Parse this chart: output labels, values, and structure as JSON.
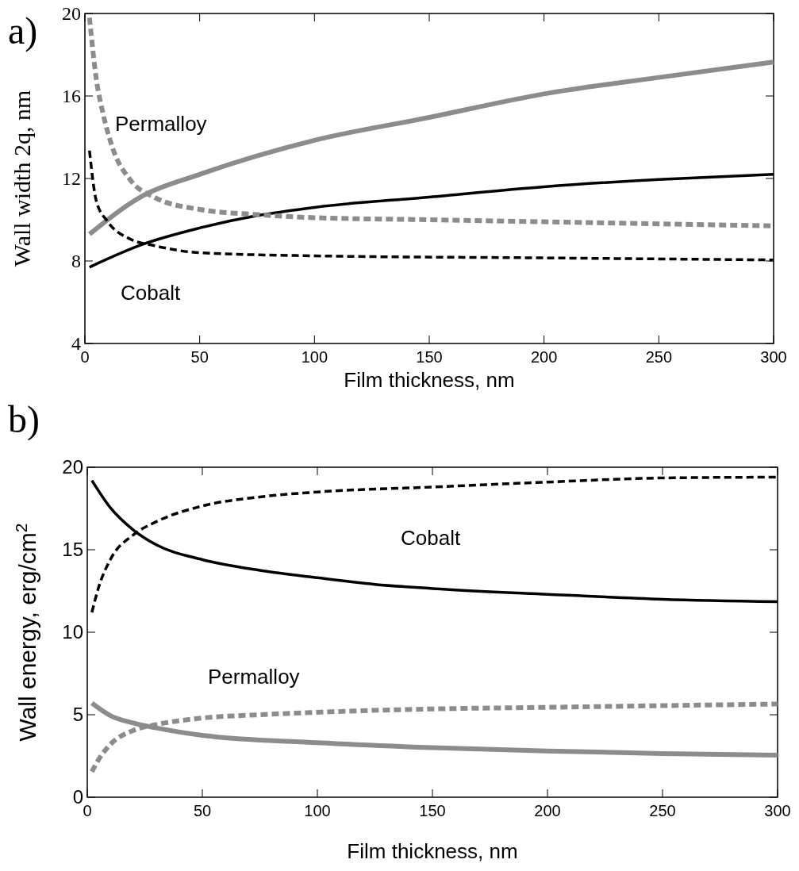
{
  "chart_data": [
    {
      "type": "line",
      "title": "a)",
      "xlabel": "Film thickness, nm",
      "ylabel": "Wall width 2q, nm",
      "xlim": [
        0,
        300
      ],
      "ylim": [
        4,
        20
      ],
      "xticks": [
        0,
        50,
        100,
        150,
        200,
        250,
        300
      ],
      "yticks": [
        4,
        8,
        12,
        16,
        20
      ],
      "annotations": [
        "Permalloy",
        "Cobalt"
      ],
      "series": [
        {
          "color": "#8c8c8c",
          "line_style": "solid",
          "x": [
            2,
            25,
            50,
            100,
            150,
            200,
            250,
            300
          ],
          "values": [
            9.3,
            11.15,
            12.2,
            13.85,
            14.96,
            16.1,
            16.9,
            17.65
          ]
        },
        {
          "color": "#000000",
          "line_style": "solid",
          "x": [
            2,
            25,
            50,
            75,
            100,
            150,
            200,
            250,
            300
          ],
          "values": [
            7.7,
            8.8,
            9.6,
            10.2,
            10.6,
            11.1,
            11.6,
            11.95,
            12.2
          ]
        },
        {
          "color": "#8c8c8c",
          "line_style": "dashed",
          "x": [
            2,
            5,
            8,
            12,
            20,
            30,
            50,
            75,
            100,
            150,
            200,
            250,
            300
          ],
          "values": [
            19.8,
            16.8,
            15.1,
            13.5,
            11.9,
            11.1,
            10.5,
            10.25,
            10.1,
            10.0,
            9.9,
            9.8,
            9.7
          ]
        },
        {
          "color": "#000000",
          "line_style": "dashed",
          "x": [
            2,
            5,
            10,
            20,
            30,
            50,
            100,
            200,
            300
          ],
          "values": [
            13.35,
            10.9,
            9.9,
            9.05,
            8.75,
            8.4,
            8.25,
            8.15,
            8.05
          ]
        }
      ]
    },
    {
      "type": "line",
      "title": "b)",
      "xlabel": "Film thickness, nm",
      "ylabel": "Wall energy, erg/cm$^{2}$",
      "xlim": [
        0,
        300
      ],
      "ylim": [
        0,
        20
      ],
      "xticks": [
        0,
        50,
        100,
        150,
        200,
        250,
        300
      ],
      "yticks": [
        0,
        5,
        10,
        15,
        20
      ],
      "annotations": [
        "Cobalt",
        "Permalloy"
      ],
      "series": [
        {
          "color": "#000000",
          "line_style": "solid",
          "x": [
            2,
            10,
            20,
            30,
            50,
            75,
            100,
            125,
            150,
            200,
            250,
            300
          ],
          "values": [
            19.2,
            17.55,
            16.2,
            15.3,
            14.4,
            13.75,
            13.3,
            12.9,
            12.65,
            12.3,
            12.0,
            11.85
          ]
        },
        {
          "color": "#000000",
          "line_style": "dashed",
          "x": [
            2,
            5,
            10,
            20,
            30,
            50,
            75,
            100,
            150,
            200,
            250,
            300
          ],
          "values": [
            11.2,
            12.75,
            14.4,
            15.9,
            16.7,
            17.65,
            18.2,
            18.5,
            18.8,
            19.1,
            19.35,
            19.4
          ]
        },
        {
          "color": "#8c8c8c",
          "line_style": "solid",
          "x": [
            2,
            10,
            20,
            30,
            50,
            100,
            150,
            200,
            250,
            300
          ],
          "values": [
            5.7,
            4.95,
            4.5,
            4.2,
            3.75,
            3.3,
            3.0,
            2.8,
            2.65,
            2.55
          ]
        },
        {
          "color": "#8c8c8c",
          "line_style": "dashed",
          "x": [
            2,
            5,
            10,
            20,
            30,
            50,
            75,
            100,
            150,
            200,
            250,
            300
          ],
          "values": [
            1.55,
            2.3,
            3.2,
            4.05,
            4.4,
            4.8,
            5.0,
            5.15,
            5.35,
            5.45,
            5.55,
            5.65
          ]
        }
      ]
    }
  ]
}
